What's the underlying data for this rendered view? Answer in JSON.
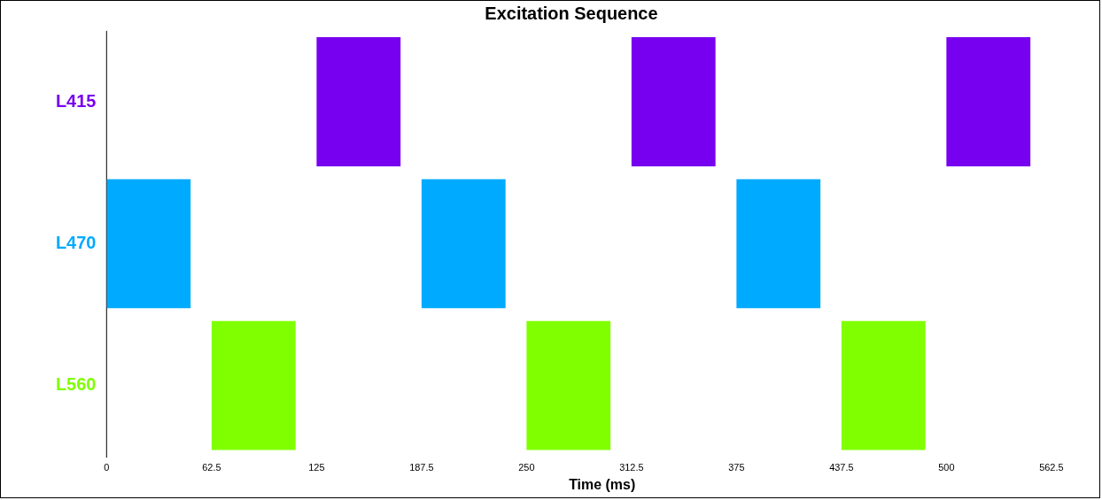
{
  "chart_data": {
    "type": "bar",
    "title": "Excitation Sequence",
    "xlabel": "Time (ms)",
    "orientation": "horizontal",
    "categories": [
      "L415",
      "L470",
      "L560"
    ],
    "series": [
      {
        "colors": [
          "#7800f0",
          "#00aaff",
          "#80ff00"
        ],
        "base": [
          125,
          0,
          62.5
        ],
        "values": [
          50,
          50,
          50
        ]
      },
      {
        "colors": [
          "#7800f0",
          "#00aaff",
          "#80ff00"
        ],
        "base": [
          312.5,
          187.5,
          250
        ],
        "values": [
          50,
          50,
          50
        ]
      },
      {
        "colors": [
          "#7800f0",
          "#00aaff",
          "#80ff00"
        ],
        "base": [
          500,
          375,
          437.5
        ],
        "values": [
          50,
          50,
          50
        ]
      }
    ],
    "xlim": [
      0,
      590
    ],
    "xticks": [
      0,
      62.5,
      125,
      187.5,
      250,
      312.5,
      375,
      437.5,
      500,
      562.5
    ],
    "legend": false
  }
}
